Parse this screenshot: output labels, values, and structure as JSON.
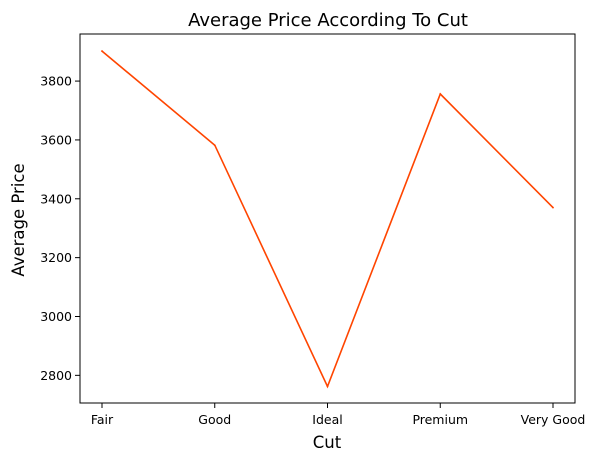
{
  "chart_data": {
    "type": "line",
    "title": "Average Price According To Cut",
    "xlabel": "Cut",
    "ylabel": "Average Price",
    "categories": [
      "Fair",
      "Good",
      "Ideal",
      "Premium",
      "Very Good"
    ],
    "series": [
      {
        "values": [
          3902,
          3582,
          2762,
          3756,
          3370
        ],
        "color": "#ff4500"
      }
    ],
    "ylim": [
      2706,
      3960
    ],
    "yticks": [
      2800,
      3000,
      3200,
      3400,
      3600,
      3800
    ],
    "ytick_labels": [
      "2800",
      "3000",
      "3200",
      "3400",
      "3600",
      "3800"
    ],
    "grid": false,
    "legend": "none"
  }
}
